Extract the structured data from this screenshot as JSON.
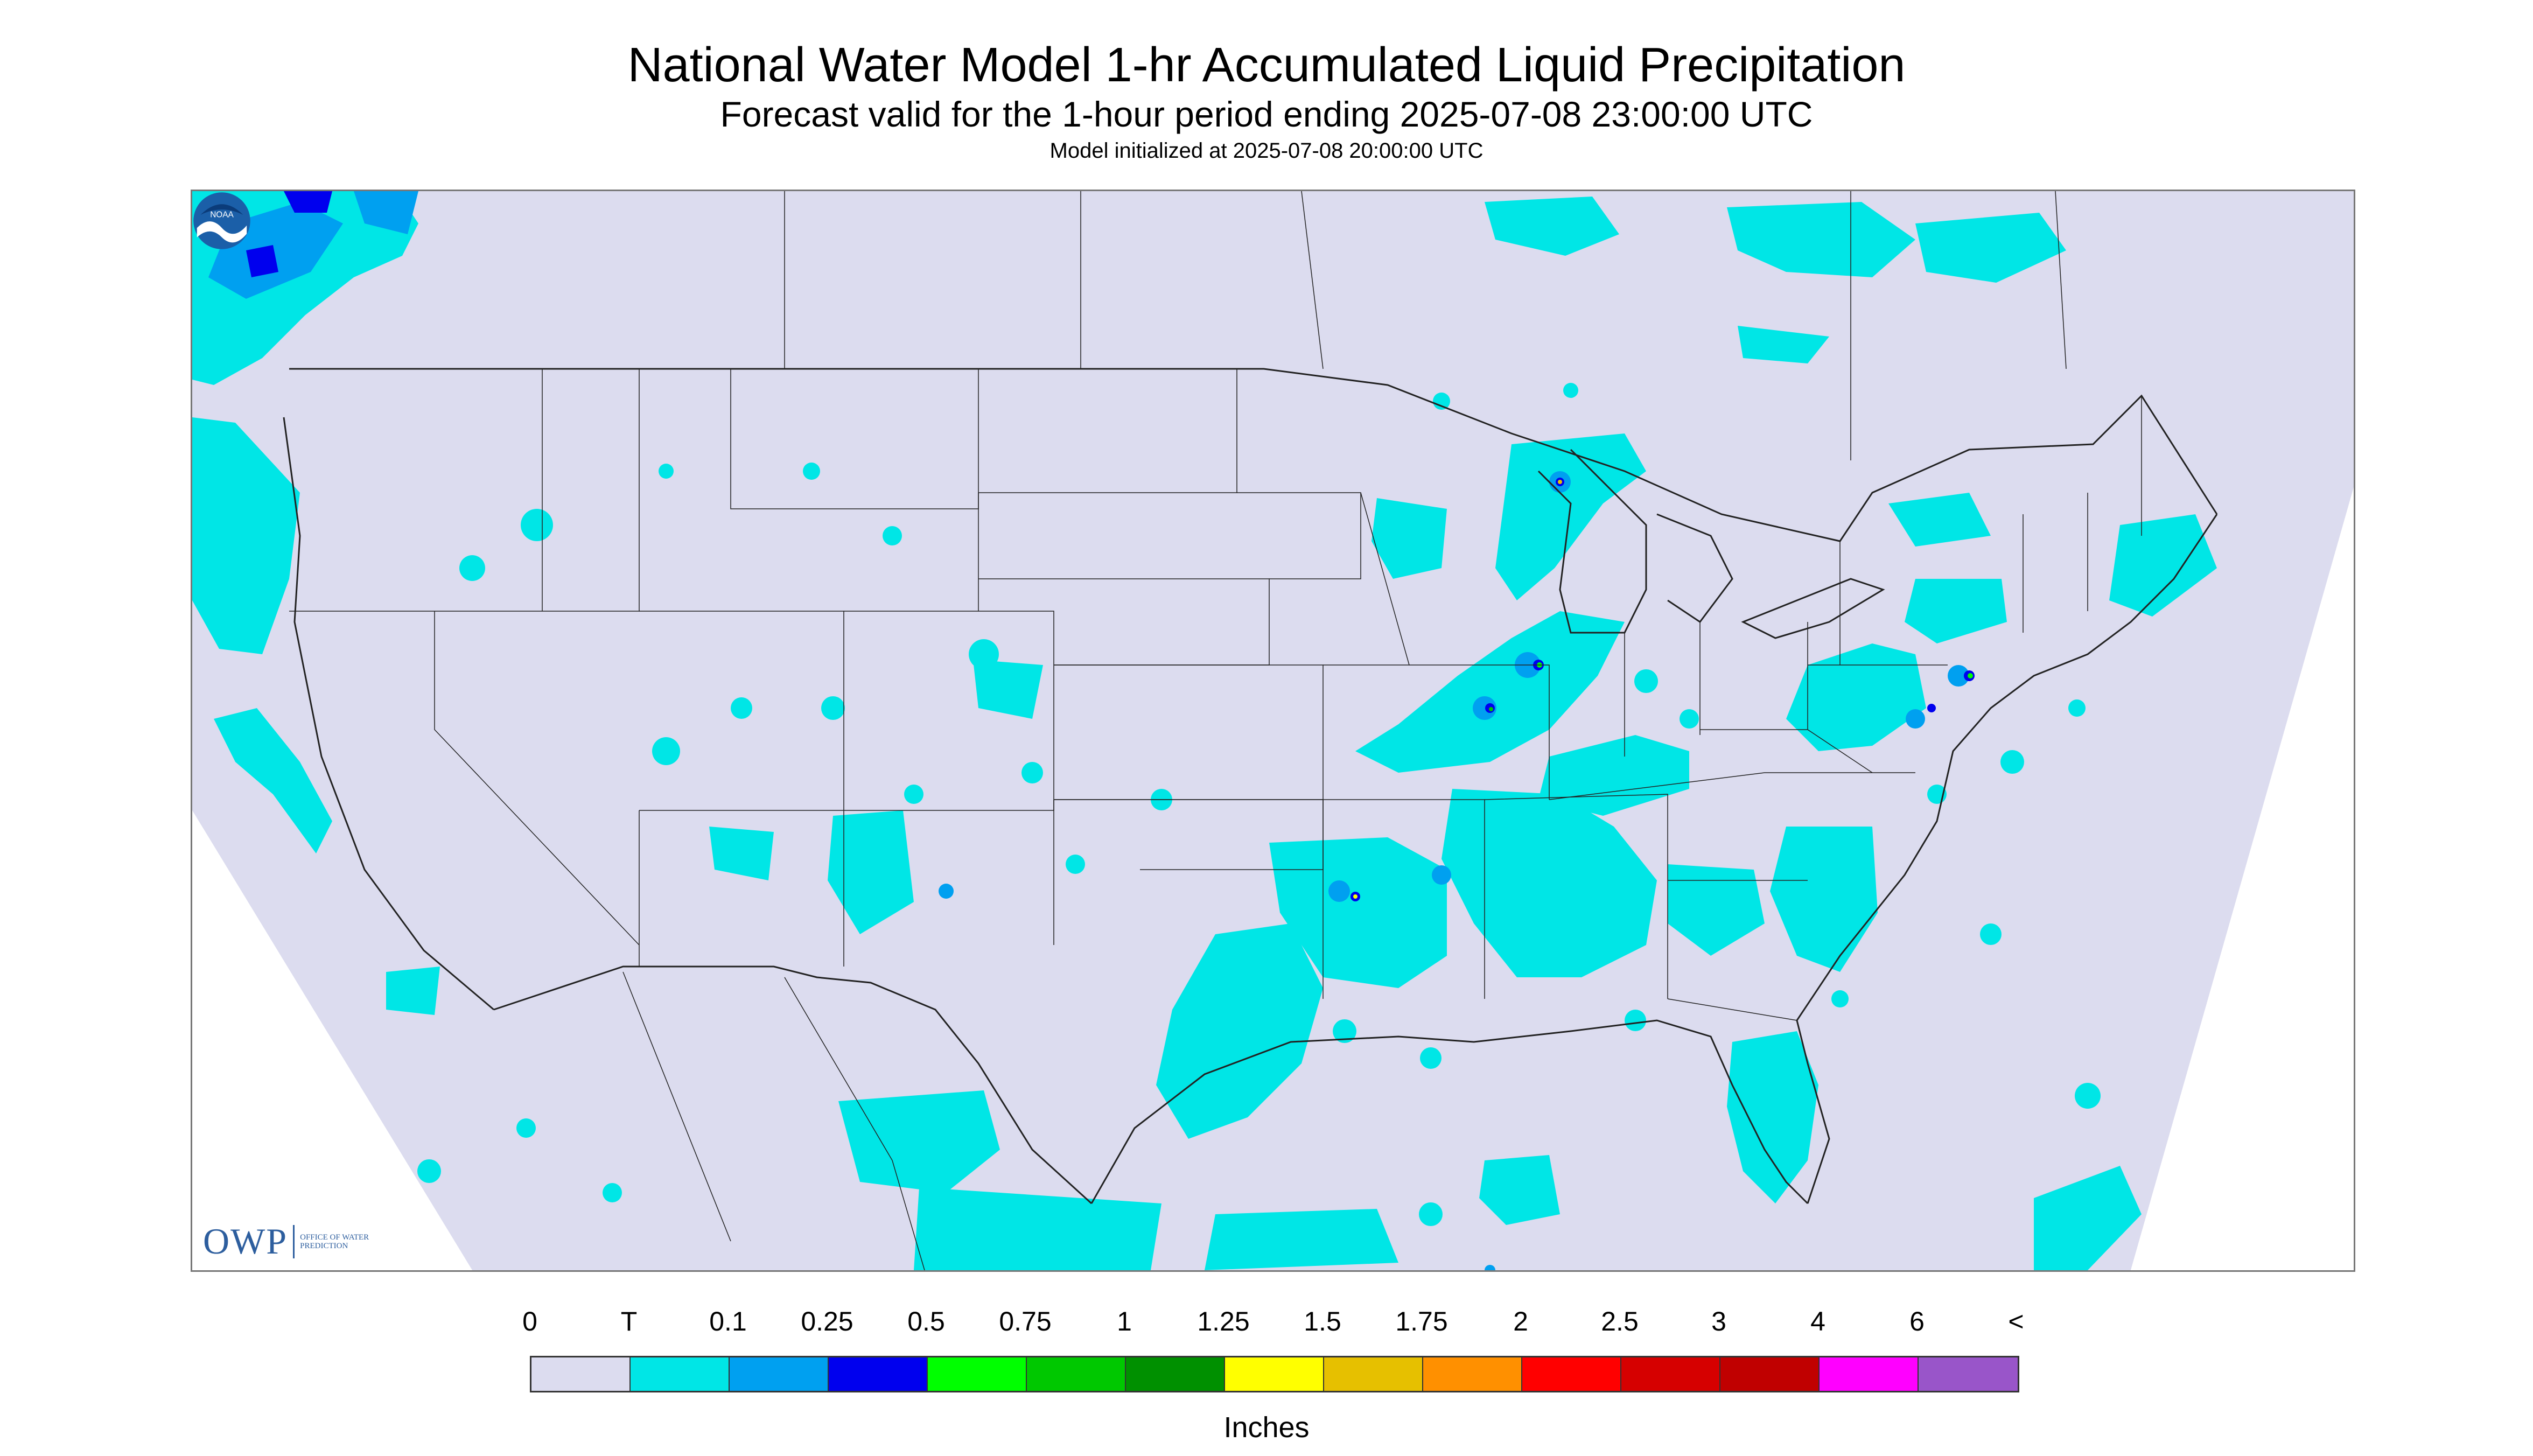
{
  "header": {
    "title": "National Water Model 1-hr Accumulated Liquid Precipitation",
    "subtitle": "Forecast valid for the 1-hour period ending 2025-07-08 23:00:00 UTC",
    "init": "Model initialized at 2025-07-08 20:00:00 UTC"
  },
  "logos": {
    "owp": {
      "letters": "OWP",
      "text": "OFFICE OF WATER PREDICTION"
    },
    "noaa": {
      "text": "NOAA"
    }
  },
  "legend": {
    "labels": [
      "0",
      "T",
      "0.1",
      "0.25",
      "0.5",
      "0.75",
      "1",
      "1.25",
      "1.5",
      "1.75",
      "2",
      "2.5",
      "3",
      "4",
      "6",
      "<"
    ],
    "colors": [
      "#dcdcef",
      "#00e6e6",
      "#00a0f0",
      "#0000ee",
      "#00ff00",
      "#00c800",
      "#009000",
      "#ffff00",
      "#e6c000",
      "#ff9000",
      "#ff0000",
      "#d60000",
      "#c00000",
      "#ff00ff",
      "#9955c9"
    ],
    "units": "Inches"
  },
  "map": {
    "background_color": "#dcdcef",
    "trace_color": "#00e6e6"
  }
}
